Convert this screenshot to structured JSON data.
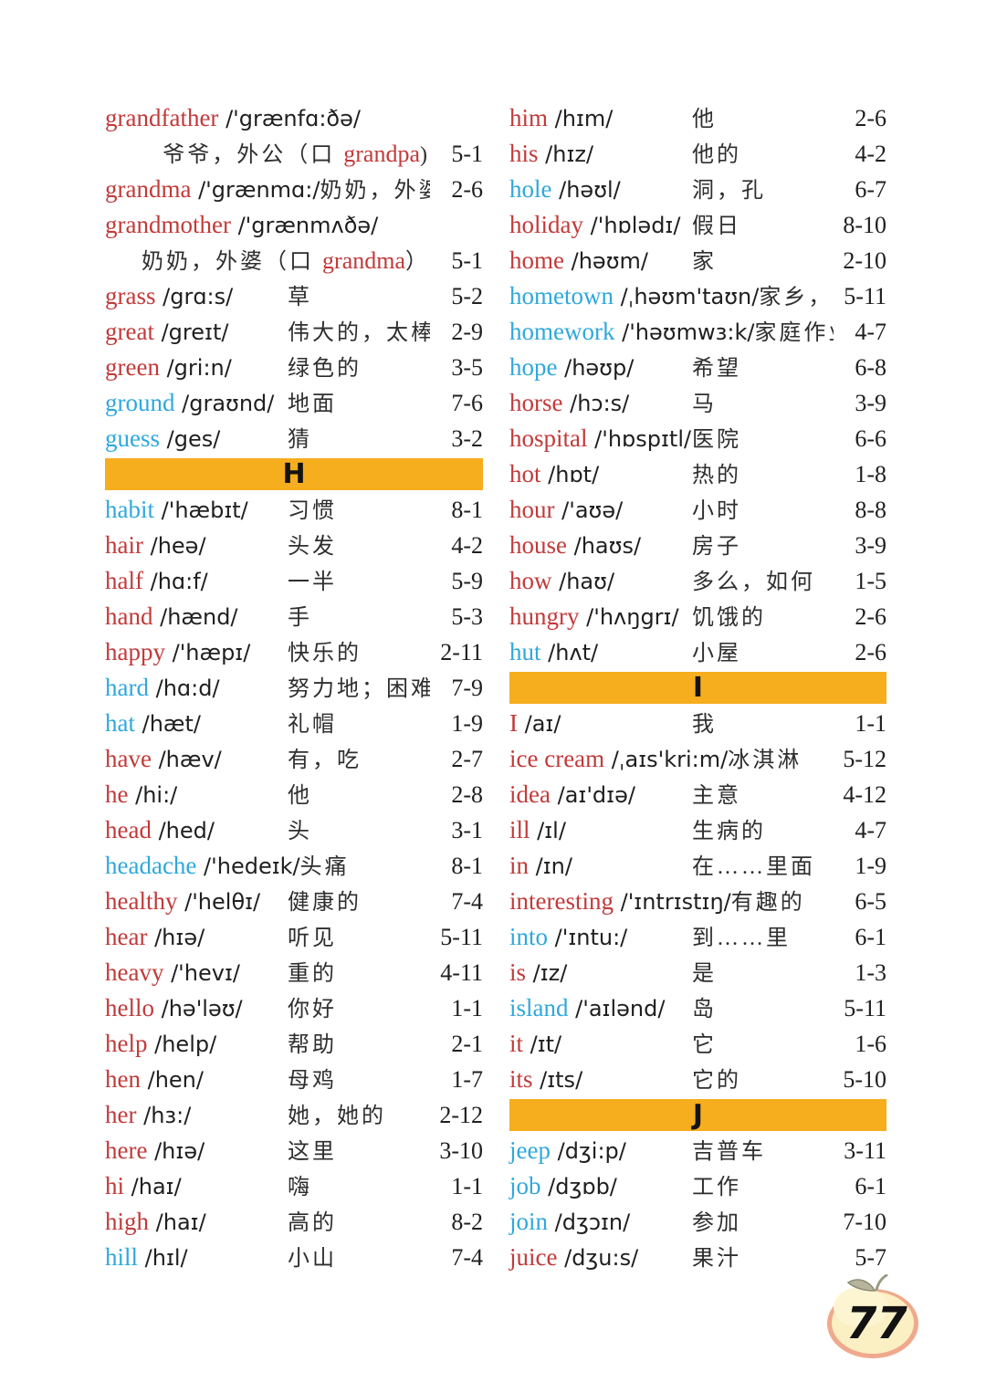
{
  "page": {
    "number": "77"
  },
  "icons": {
    "page_badge_icon": "apple-icon"
  },
  "colors": {
    "word_red": "#c23a3a",
    "word_cyan": "#2fa8dc",
    "section_bar": "#f6ae1e",
    "ink": "#1f1f1f"
  },
  "columns": [
    {
      "entries": [
        {
          "type": "word",
          "two_line": true,
          "word": "grandfather",
          "color": "red",
          "phonetic": "/'grænfɑ:ðə/",
          "meaning_parts": [
            {
              "t": "爷爷，外公（口 "
            },
            {
              "t": "grandpa",
              "red": true
            },
            {
              "t": ")"
            }
          ],
          "ref": "5-1"
        },
        {
          "type": "word",
          "word": "grandma",
          "color": "red",
          "phonetic": "/'grænmɑ:/",
          "meaning": "奶奶，外婆",
          "ref": "2-6"
        },
        {
          "type": "word",
          "two_line": true,
          "word": "grandmother",
          "color": "red",
          "phonetic": "/'grænmʌðə/",
          "meaning_parts": [
            {
              "t": "奶奶，外婆（口 "
            },
            {
              "t": "grandma",
              "red": true
            },
            {
              "t": "）"
            }
          ],
          "ref": "5-1"
        },
        {
          "type": "word",
          "word": "grass",
          "color": "red",
          "phonetic": "/grɑ:s/",
          "meaning": "草",
          "ref": "5-2"
        },
        {
          "type": "word",
          "word": "great",
          "color": "red",
          "phonetic": "/greɪt/",
          "meaning": "伟大的，太棒了",
          "ref": "2-9"
        },
        {
          "type": "word",
          "word": "green",
          "color": "red",
          "phonetic": "/gri:n/",
          "meaning": "绿色的",
          "ref": "3-5"
        },
        {
          "type": "word",
          "word": "ground",
          "color": "cyan",
          "phonetic": "/graʊnd/",
          "meaning": "地面",
          "ref": "7-6"
        },
        {
          "type": "word",
          "word": "guess",
          "color": "cyan",
          "phonetic": "/ges/",
          "meaning": "猜",
          "ref": "3-2"
        },
        {
          "type": "section",
          "letter": "H"
        },
        {
          "type": "word",
          "word": "habit",
          "color": "cyan",
          "phonetic": "/'hæbɪt/",
          "meaning": "习惯",
          "ref": "8-1"
        },
        {
          "type": "word",
          "word": "hair",
          "color": "red",
          "phonetic": "/heə/",
          "meaning": "头发",
          "ref": "4-2"
        },
        {
          "type": "word",
          "word": "half",
          "color": "red",
          "phonetic": "/hɑ:f/",
          "meaning": "一半",
          "ref": "5-9"
        },
        {
          "type": "word",
          "word": "hand",
          "color": "red",
          "phonetic": "/hænd/",
          "meaning": "手",
          "ref": "5-3"
        },
        {
          "type": "word",
          "word": "happy",
          "color": "red",
          "phonetic": "/'hæpɪ/",
          "meaning": "快乐的",
          "ref": "2-11"
        },
        {
          "type": "word",
          "word": "hard",
          "color": "cyan",
          "phonetic": "/hɑ:d/",
          "meaning": "努力地；困难的",
          "ref": "7-9"
        },
        {
          "type": "word",
          "word": "hat",
          "color": "cyan",
          "phonetic": "/hæt/",
          "meaning": "礼帽",
          "ref": "1-9"
        },
        {
          "type": "word",
          "word": "have",
          "color": "red",
          "phonetic": "/hæv/",
          "meaning": "有，吃",
          "ref": "2-7"
        },
        {
          "type": "word",
          "word": "he",
          "color": "red",
          "phonetic": "/hi:/",
          "meaning": "他",
          "ref": "2-8"
        },
        {
          "type": "word",
          "word": "head",
          "color": "red",
          "phonetic": "/hed/",
          "meaning": "头",
          "ref": "3-1"
        },
        {
          "type": "word",
          "word": "headache",
          "color": "cyan",
          "phonetic": "/'hedeɪk/",
          "meaning": "头痛",
          "ref": "8-1"
        },
        {
          "type": "word",
          "word": "healthy",
          "color": "red",
          "phonetic": "/'helθɪ/",
          "meaning": "健康的",
          "ref": "7-4"
        },
        {
          "type": "word",
          "word": "hear",
          "color": "red",
          "phonetic": "/hɪə/",
          "meaning": "听见",
          "ref": "5-11"
        },
        {
          "type": "word",
          "word": "heavy",
          "color": "red",
          "phonetic": "/'hevɪ/",
          "meaning": "重的",
          "ref": "4-11"
        },
        {
          "type": "word",
          "word": "hello",
          "color": "red",
          "phonetic": "/hə'ləʊ/",
          "meaning": "你好",
          "ref": "1-1"
        },
        {
          "type": "word",
          "word": "help",
          "color": "red",
          "phonetic": "/help/",
          "meaning": "帮助",
          "ref": "2-1"
        },
        {
          "type": "word",
          "word": "hen",
          "color": "red",
          "phonetic": "/hen/",
          "meaning": "母鸡",
          "ref": "1-7"
        },
        {
          "type": "word",
          "word": "her",
          "color": "red",
          "phonetic": "/hɜ:/",
          "meaning": "她，她的",
          "ref": "2-12"
        },
        {
          "type": "word",
          "word": "here",
          "color": "red",
          "phonetic": "/hɪə/",
          "meaning": "这里",
          "ref": "3-10"
        },
        {
          "type": "word",
          "word": "hi",
          "color": "red",
          "phonetic": "/haɪ/",
          "meaning": "嗨",
          "ref": "1-1"
        },
        {
          "type": "word",
          "word": "high",
          "color": "red",
          "phonetic": "/haɪ/",
          "meaning": "高的",
          "ref": "8-2"
        },
        {
          "type": "word",
          "word": "hill",
          "color": "cyan",
          "phonetic": "/hɪl/",
          "meaning": "小山",
          "ref": "7-4"
        }
      ]
    },
    {
      "entries": [
        {
          "type": "word",
          "word": "him",
          "color": "red",
          "phonetic": "/hɪm/",
          "meaning": "他",
          "ref": "2-6"
        },
        {
          "type": "word",
          "word": "his",
          "color": "red",
          "phonetic": "/hɪz/",
          "meaning": "他的",
          "ref": "4-2"
        },
        {
          "type": "word",
          "word": "hole",
          "color": "cyan",
          "phonetic": "/həʊl/",
          "meaning": "洞，孔",
          "ref": "6-7"
        },
        {
          "type": "word",
          "word": "holiday",
          "color": "red",
          "phonetic": "/'hɒlədɪ/",
          "meaning": "假日",
          "ref": "8-10"
        },
        {
          "type": "word",
          "word": "home",
          "color": "red",
          "phonetic": "/həʊm/",
          "meaning": "家",
          "ref": "2-10"
        },
        {
          "type": "word",
          "word": "hometown",
          "color": "cyan",
          "phonetic": "/ˌhəʊm'taʊn/",
          "meaning": "家乡，故乡",
          "ref": "5-11"
        },
        {
          "type": "word",
          "word": "homework",
          "color": "cyan",
          "phonetic": "/'həʊmwɜ:k/",
          "meaning": "家庭作业",
          "ref": "4-7"
        },
        {
          "type": "word",
          "word": "hope",
          "color": "cyan",
          "phonetic": "/həʊp/",
          "meaning": "希望",
          "ref": "6-8"
        },
        {
          "type": "word",
          "word": "horse",
          "color": "red",
          "phonetic": "/hɔ:s/",
          "meaning": "马",
          "ref": "3-9"
        },
        {
          "type": "word",
          "word": "hospital",
          "color": "red",
          "phonetic": "/'hɒspɪtl/",
          "meaning": "医院",
          "ref": "6-6"
        },
        {
          "type": "word",
          "word": "hot",
          "color": "red",
          "phonetic": "/hɒt/",
          "meaning": "热的",
          "ref": "1-8"
        },
        {
          "type": "word",
          "word": "hour",
          "color": "red",
          "phonetic": "/'aʊə/",
          "meaning": "小时",
          "ref": "8-8"
        },
        {
          "type": "word",
          "word": "house",
          "color": "red",
          "phonetic": "/haʊs/",
          "meaning": "房子",
          "ref": "3-9"
        },
        {
          "type": "word",
          "word": "how",
          "color": "red",
          "phonetic": "/haʊ/",
          "meaning": "多么，如何",
          "ref": "1-5"
        },
        {
          "type": "word",
          "word": "hungry",
          "color": "red",
          "phonetic": "/'hʌŋgrɪ/",
          "meaning": "饥饿的",
          "ref": "2-6"
        },
        {
          "type": "word",
          "word": "hut",
          "color": "cyan",
          "phonetic": "/hʌt/",
          "meaning": "小屋",
          "ref": "2-6"
        },
        {
          "type": "section",
          "letter": "I"
        },
        {
          "type": "word",
          "word": "I",
          "color": "red",
          "phonetic": "/aɪ/",
          "meaning": "我",
          "ref": "1-1"
        },
        {
          "type": "word",
          "word": "ice cream",
          "color": "red",
          "phonetic": "/ˌaɪs'kri:m/",
          "meaning": "冰淇淋",
          "ref": "5-12"
        },
        {
          "type": "word",
          "word": "idea",
          "color": "red",
          "phonetic": "/aɪ'dɪə/",
          "meaning": "主意",
          "ref": "4-12"
        },
        {
          "type": "word",
          "word": "ill",
          "color": "red",
          "phonetic": "/ɪl/",
          "meaning": "生病的",
          "ref": "4-7"
        },
        {
          "type": "word",
          "word": "in",
          "color": "red",
          "phonetic": "/ɪn/",
          "meaning": "在……里面",
          "ref": "1-9"
        },
        {
          "type": "word",
          "word": "interesting",
          "color": "red",
          "phonetic": "/'ɪntrɪstɪŋ/",
          "meaning": "有趣的",
          "ref": "6-5"
        },
        {
          "type": "word",
          "word": "into",
          "color": "cyan",
          "phonetic": "/'ɪntu:/",
          "meaning": "到……里",
          "ref": "6-1"
        },
        {
          "type": "word",
          "word": "is",
          "color": "red",
          "phonetic": "/ɪz/",
          "meaning": "是",
          "ref": "1-3"
        },
        {
          "type": "word",
          "word": "island",
          "color": "cyan",
          "phonetic": "/'aɪlənd/",
          "meaning": "岛",
          "ref": "5-11"
        },
        {
          "type": "word",
          "word": "it",
          "color": "red",
          "phonetic": "/ɪt/",
          "meaning": "它",
          "ref": "1-6"
        },
        {
          "type": "word",
          "word": "its",
          "color": "red",
          "phonetic": "/ɪts/",
          "meaning": "它的",
          "ref": "5-10"
        },
        {
          "type": "section",
          "letter": "J"
        },
        {
          "type": "word",
          "word": "jeep",
          "color": "cyan",
          "phonetic": "/dʒi:p/",
          "meaning": "吉普车",
          "ref": "3-11"
        },
        {
          "type": "word",
          "word": "job",
          "color": "cyan",
          "phonetic": "/dʒɒb/",
          "meaning": "工作",
          "ref": "6-1"
        },
        {
          "type": "word",
          "word": "join",
          "color": "cyan",
          "phonetic": "/dʒɔɪn/",
          "meaning": "参加",
          "ref": "7-10"
        },
        {
          "type": "word",
          "word": "juice",
          "color": "red",
          "phonetic": "/dʒu:s/",
          "meaning": "果汁",
          "ref": "5-7"
        }
      ]
    }
  ]
}
